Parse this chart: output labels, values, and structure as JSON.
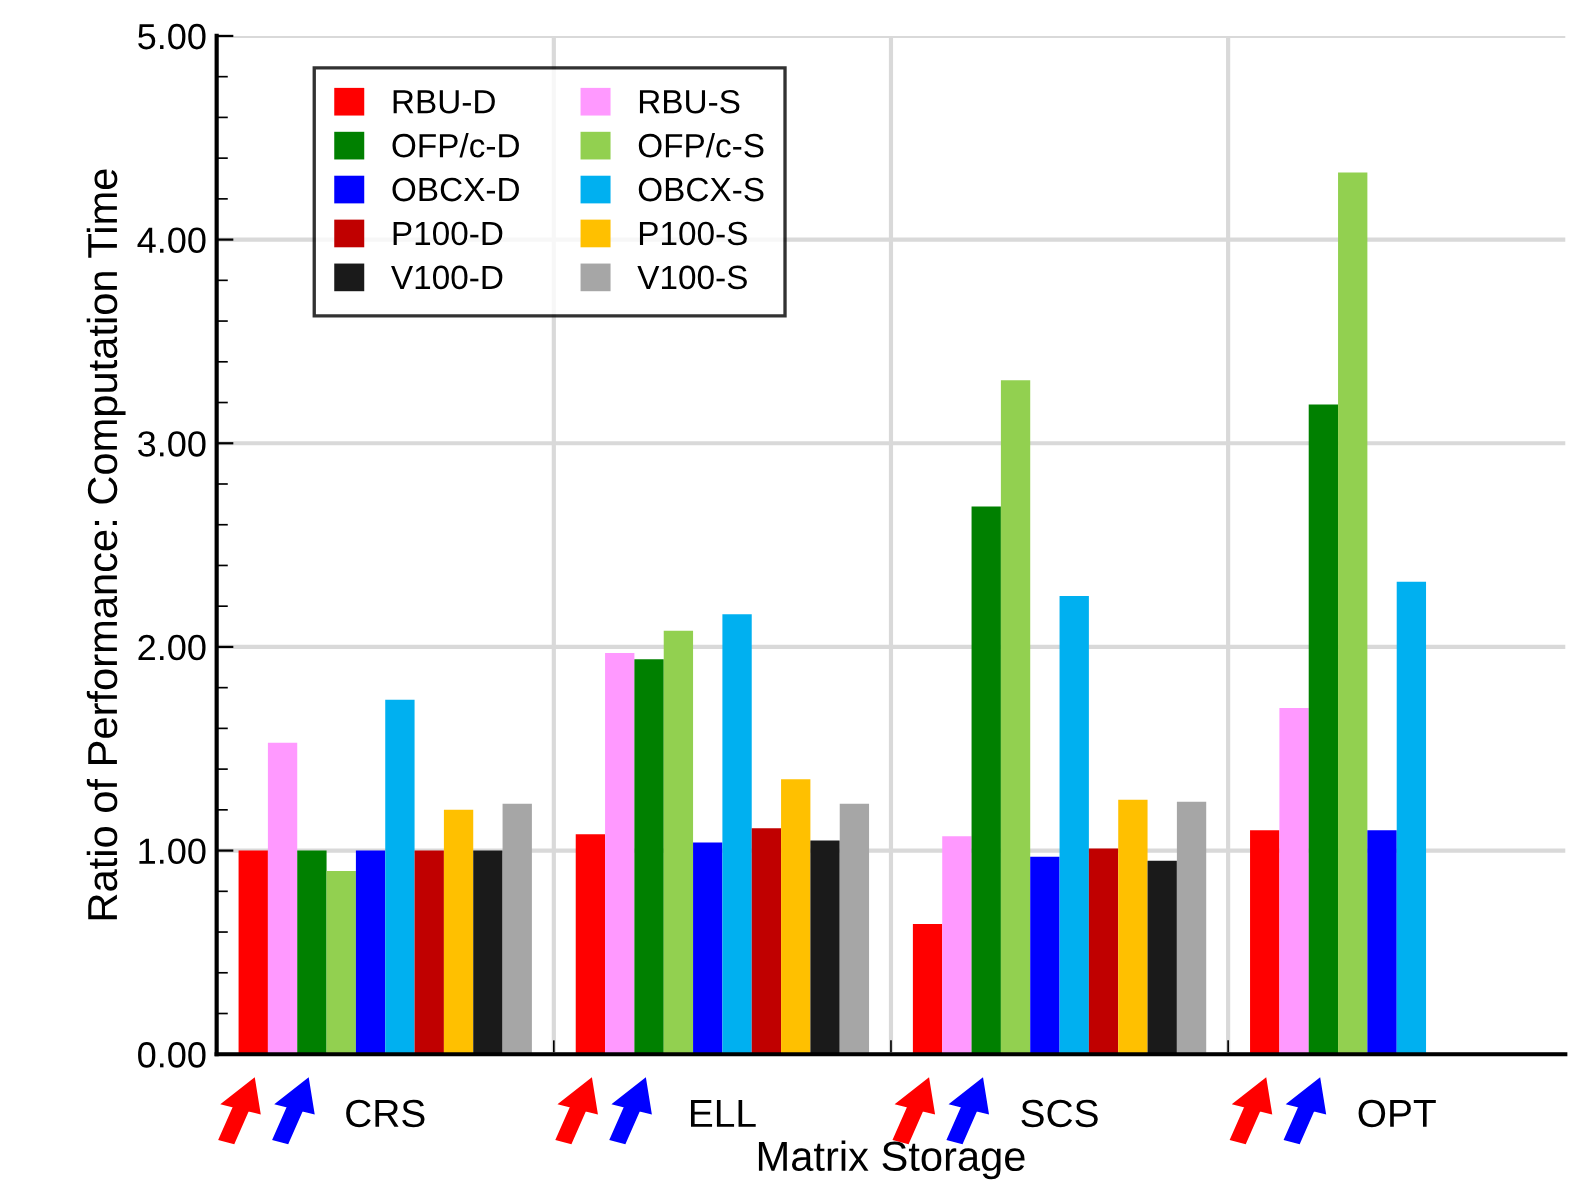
{
  "chart_data": {
    "type": "bar",
    "xlabel": "Matrix Storage",
    "ylabel": "Ratio of Performance: Computation Time",
    "categories": [
      "CRS",
      "ELL",
      "SCS",
      "OPT"
    ],
    "series": [
      {
        "name": "RBU-D",
        "color": "#ff0000",
        "values": [
          1.0,
          1.08,
          0.64,
          1.1
        ]
      },
      {
        "name": "RBU-S",
        "color": "#ff99ff",
        "values": [
          1.53,
          1.97,
          1.07,
          1.7
        ]
      },
      {
        "name": "OFP/c-D",
        "color": "#008000",
        "values": [
          1.0,
          1.94,
          2.69,
          3.19
        ]
      },
      {
        "name": "OFP/c-S",
        "color": "#92d050",
        "values": [
          0.9,
          2.08,
          3.31,
          4.33
        ]
      },
      {
        "name": "OBCX-D",
        "color": "#0000ff",
        "values": [
          1.0,
          1.04,
          0.97,
          1.1
        ]
      },
      {
        "name": "OBCX-S",
        "color": "#00b0f0",
        "values": [
          1.74,
          2.16,
          2.25,
          2.32
        ]
      },
      {
        "name": "P100-D",
        "color": "#c00000",
        "values": [
          1.0,
          1.11,
          1.01,
          null
        ]
      },
      {
        "name": "P100-S",
        "color": "#ffc000",
        "values": [
          1.2,
          1.35,
          1.25,
          null
        ]
      },
      {
        "name": "V100-D",
        "color": "#1a1a1a",
        "values": [
          1.0,
          1.05,
          0.95,
          null
        ]
      },
      {
        "name": "V100-S",
        "color": "#a6a6a6",
        "values": [
          1.23,
          1.23,
          1.24,
          null
        ]
      }
    ],
    "ylim": [
      0,
      5
    ],
    "yticks": [
      {
        "value": 0,
        "label": "0.00"
      },
      {
        "value": 1,
        "label": "1.00"
      },
      {
        "value": 2,
        "label": "2.00"
      },
      {
        "value": 3,
        "label": "3.00"
      },
      {
        "value": 4,
        "label": "4.00"
      },
      {
        "value": 5,
        "label": "5.00"
      }
    ],
    "grid": true,
    "legend": "top left"
  }
}
